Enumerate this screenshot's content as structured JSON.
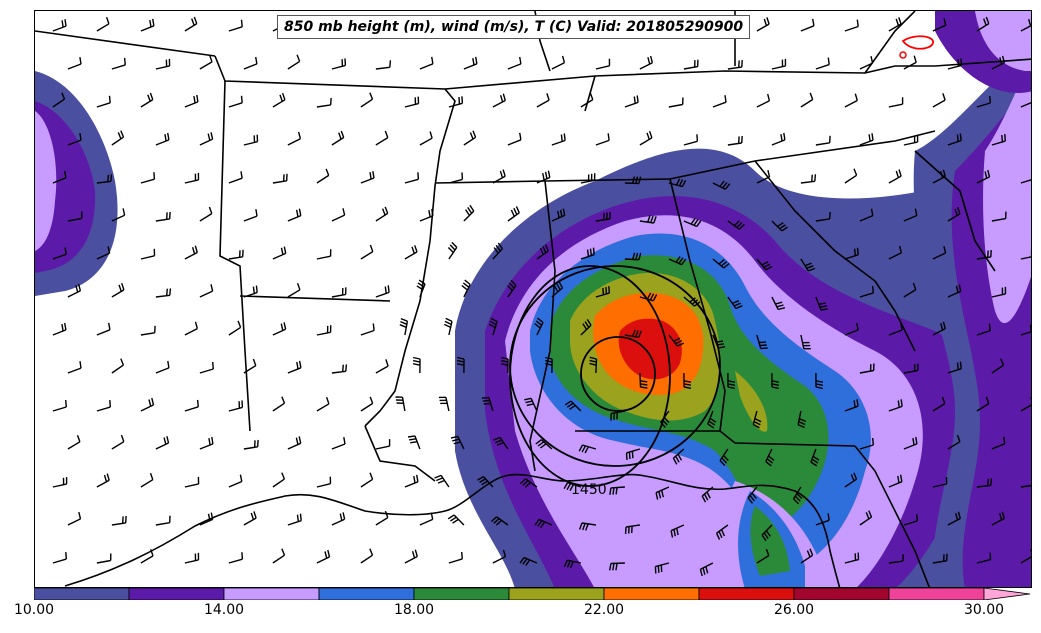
{
  "title": "850 mb height (m), wind (m/s), T (C) Valid: 201805290900",
  "contour_label": "1450",
  "colorbar": {
    "ticks": [
      "10.00",
      "14.00",
      "18.00",
      "22.00",
      "26.00",
      "30.00"
    ],
    "bins": [
      {
        "from": 10,
        "to": 12,
        "color": "#4a4fa0"
      },
      {
        "from": 12,
        "to": 14,
        "color": "#5c1aa8"
      },
      {
        "from": 14,
        "to": 16,
        "color": "#c79bff"
      },
      {
        "from": 16,
        "to": 18,
        "color": "#2f6fdc"
      },
      {
        "from": 18,
        "to": 20,
        "color": "#2a8a3a"
      },
      {
        "from": 20,
        "to": 22,
        "color": "#9aa21e"
      },
      {
        "from": 22,
        "to": 24,
        "color": "#ff6e00"
      },
      {
        "from": 24,
        "to": 26,
        "color": "#dc0f0f"
      },
      {
        "from": 26,
        "to": 28,
        "color": "#a2052e"
      },
      {
        "from": 28,
        "to": 30,
        "color": "#ee4399"
      },
      {
        "from": 30,
        "to": 32,
        "color": "#ffa6d8",
        "extend": true
      }
    ]
  },
  "legend_colors": {
    "background": "#ffffff",
    "borders": "#000000",
    "warm_contour": "#ff0000"
  }
}
